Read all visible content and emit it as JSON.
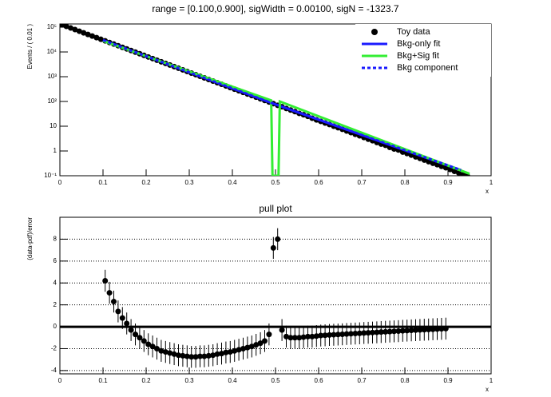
{
  "chart_data": [
    {
      "type": "scatter",
      "title": "range = [0.100,0.900], sigWidth = 0.00100, sigN = -1323.7",
      "x_label": "x",
      "y_label": "Events / ( 0.01 )",
      "log_y": true,
      "legend": true,
      "legend_position": "upper right",
      "xlim": [
        0,
        1
      ],
      "xticks": [
        0,
        0.1,
        0.2,
        0.3,
        0.4,
        0.5,
        0.6,
        0.7,
        0.8,
        0.9,
        1
      ],
      "ylim": [
        0.1,
        135000
      ],
      "yticks": [
        {
          "value": 0.1,
          "label": "10⁻¹"
        },
        1,
        10,
        {
          "value": 100,
          "label": "10²"
        },
        {
          "value": 1000,
          "label": "10³"
        },
        {
          "value": 10000,
          "label": "10⁴"
        },
        {
          "value": 100000,
          "label": "10⁵"
        }
      ],
      "series": [
        {
          "name": "Toy data",
          "mode": "markers",
          "color": "#000000",
          "x": [
            0.005,
            0.015,
            0.025,
            0.035,
            0.045,
            0.055,
            0.065,
            0.075,
            0.085,
            0.095,
            0.105,
            0.115,
            0.125,
            0.135,
            0.145,
            0.155,
            0.165,
            0.175,
            0.185,
            0.195,
            0.205,
            0.215,
            0.225,
            0.235,
            0.245,
            0.255,
            0.265,
            0.275,
            0.285,
            0.295,
            0.305,
            0.315,
            0.325,
            0.335,
            0.345,
            0.355,
            0.365,
            0.375,
            0.385,
            0.395,
            0.405,
            0.415,
            0.425,
            0.435,
            0.445,
            0.455,
            0.465,
            0.475,
            0.485,
            0.495,
            0.505,
            0.515,
            0.525,
            0.535,
            0.545,
            0.555,
            0.565,
            0.575,
            0.585,
            0.595,
            0.605,
            0.615,
            0.625,
            0.635,
            0.645,
            0.655,
            0.665,
            0.675,
            0.685,
            0.695,
            0.705,
            0.715,
            0.725,
            0.735,
            0.745,
            0.755,
            0.765,
            0.775,
            0.785,
            0.795,
            0.805,
            0.815,
            0.825,
            0.835,
            0.845,
            0.855,
            0.865,
            0.875,
            0.885,
            0.895,
            0.905,
            0.915,
            0.925,
            0.935,
            0.945
          ],
          "values": [
            125000,
            107800,
            92800,
            79900,
            68800,
            59200,
            51000,
            43900,
            37800,
            32500,
            28000,
            24100,
            20800,
            17900,
            15400,
            13300,
            11400,
            9830,
            8460,
            7290,
            6270,
            5400,
            4650,
            4000,
            3450,
            2970,
            2560,
            2200,
            1890,
            1630,
            1400,
            1210,
            1040,
            897,
            772,
            665,
            572,
            493,
            424,
            365,
            314,
            270,
            233,
            200,
            173,
            149,
            128,
            110,
            95,
            82,
            70,
            61,
            52,
            45,
            39,
            33,
            29,
            25,
            21,
            18,
            15.7,
            13.5,
            11.7,
            10,
            8.7,
            7.5,
            6.4,
            5.5,
            4.7,
            4.1,
            3.5,
            3,
            2.6,
            2.2,
            1.9,
            1.7,
            1.4,
            1.2,
            1.1,
            0.9,
            0.79,
            0.68,
            0.58,
            0.5,
            0.43,
            0.37,
            0.32,
            0.28,
            0.24,
            0.21,
            0.18,
            0.15,
            0.13,
            0.11,
            0.097
          ]
        },
        {
          "name": "Bkg-only fit",
          "mode": "lines",
          "color": "#1a1aff",
          "x": [
            0.1,
            0.5,
            0.93
          ],
          "values": [
            30000,
            76,
            0.17
          ]
        },
        {
          "name": "Bkg+Sig fit",
          "mode": "lines",
          "color": "#33ee33",
          "x": [
            0.1,
            0.49,
            0.493,
            0.497,
            0.503,
            0.507,
            0.51,
            0.95
          ],
          "values": [
            28000,
            110,
            0.1,
            0.1,
            0.1,
            0.1,
            100,
            0.12
          ]
        },
        {
          "name": "Bkg component",
          "mode": "lines",
          "dashed": true,
          "color": "#1a1aff",
          "x": [
            0.1,
            0.5,
            0.93
          ],
          "values": [
            30000,
            76,
            0.17
          ]
        }
      ]
    },
    {
      "type": "scatter",
      "title": "pull plot",
      "x_label": "x",
      "y_label": "(data-pdf)/error",
      "grid": true,
      "xlim": [
        0,
        1
      ],
      "xticks": [
        0,
        0.1,
        0.2,
        0.3,
        0.4,
        0.5,
        0.6,
        0.7,
        0.8,
        0.9,
        1
      ],
      "ylim": [
        -4.3,
        10
      ],
      "yticks": [
        -4,
        -2,
        0,
        2,
        4,
        6,
        8
      ],
      "series": [
        {
          "mode": "markers",
          "color": "#000000",
          "error": 1,
          "x": [
            0.105,
            0.115,
            0.125,
            0.135,
            0.145,
            0.155,
            0.165,
            0.175,
            0.185,
            0.195,
            0.205,
            0.215,
            0.225,
            0.235,
            0.245,
            0.255,
            0.265,
            0.275,
            0.285,
            0.295,
            0.305,
            0.315,
            0.325,
            0.335,
            0.345,
            0.355,
            0.365,
            0.375,
            0.385,
            0.395,
            0.405,
            0.415,
            0.425,
            0.435,
            0.445,
            0.455,
            0.465,
            0.475,
            0.485,
            0.495,
            0.505,
            0.515,
            0.525,
            0.535,
            0.545,
            0.555,
            0.565,
            0.575,
            0.585,
            0.595,
            0.605,
            0.615,
            0.625,
            0.635,
            0.645,
            0.655,
            0.665,
            0.675,
            0.685,
            0.695,
            0.705,
            0.715,
            0.725,
            0.735,
            0.745,
            0.755,
            0.765,
            0.775,
            0.785,
            0.795,
            0.805,
            0.815,
            0.825,
            0.835,
            0.845,
            0.855,
            0.865,
            0.875,
            0.885,
            0.895
          ],
          "values": [
            4.2,
            3.1,
            2.3,
            1.4,
            0.8,
            0.3,
            -0.3,
            -0.7,
            -1,
            -1.3,
            -1.6,
            -1.8,
            -2,
            -2.2,
            -2.3,
            -2.4,
            -2.5,
            -2.6,
            -2.65,
            -2.7,
            -2.75,
            -2.75,
            -2.7,
            -2.7,
            -2.65,
            -2.6,
            -2.5,
            -2.45,
            -2.35,
            -2.3,
            -2.2,
            -2.1,
            -2,
            -1.9,
            -1.8,
            -1.65,
            -1.5,
            -1.3,
            -0.7,
            7.2,
            8,
            -0.3,
            -0.9,
            -1,
            -1,
            -1,
            -0.95,
            -0.9,
            -0.9,
            -0.85,
            -0.8,
            -0.78,
            -0.75,
            -0.73,
            -0.71,
            -0.69,
            -0.66,
            -0.64,
            -0.62,
            -0.6,
            -0.57,
            -0.55,
            -0.53,
            -0.51,
            -0.48,
            -0.46,
            -0.44,
            -0.42,
            -0.4,
            -0.37,
            -0.35,
            -0.33,
            -0.31,
            -0.29,
            -0.27,
            -0.25,
            -0.23,
            -0.21,
            -0.19,
            -0.17
          ]
        },
        {
          "mode": "lines",
          "color": "#000000",
          "width": 3,
          "x": [
            0,
            1
          ],
          "values": [
            0,
            0
          ]
        }
      ]
    }
  ]
}
